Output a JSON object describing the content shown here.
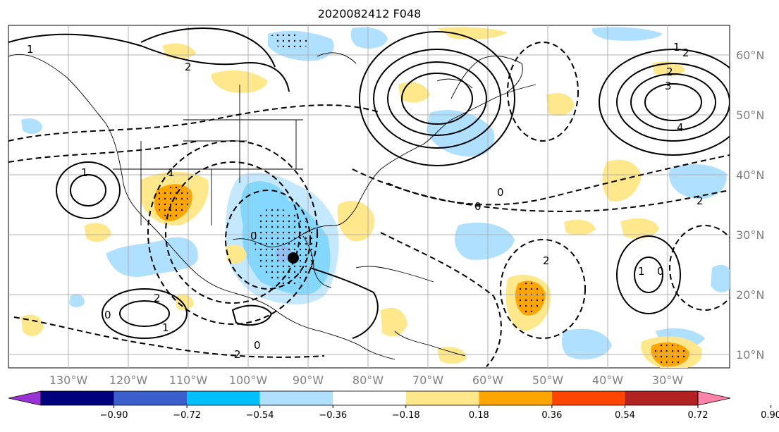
{
  "title": "2020082412 F048",
  "lon_labels": [
    "130°W",
    "120°W",
    "110°W",
    "100°W",
    "90°W",
    "80°W",
    "70°W",
    "60°W",
    "50°W",
    "40°W",
    "30°W"
  ],
  "lat_labels": [
    "60°N",
    "50°N",
    "40°N",
    "30°N",
    "20°N",
    "10°N"
  ],
  "colorbar": {
    "ticks": [
      "−0.90",
      "−0.72",
      "−0.54",
      "−0.36",
      "−0.18",
      "0.18",
      "0.36",
      "0.54",
      "0.72",
      "0.90"
    ],
    "colors": [
      "#9a33d6",
      "#00007f",
      "#3a5fcd",
      "#00bfff",
      "#b0e0ff",
      "#ffffff",
      "#ffe78c",
      "#ffa500",
      "#ff4500",
      "#b22222",
      "#ff82ab"
    ]
  },
  "contour_labels": [
    "1",
    "2",
    "2",
    "3",
    "4",
    "2",
    "1",
    "0",
    "0",
    "0",
    "0",
    "2",
    "1",
    "1",
    "2",
    "0",
    "2",
    "0",
    "1",
    "2",
    "1"
  ],
  "colors": {
    "contour": "#000000",
    "grid": "#b0b0b0",
    "coast": "#000000",
    "storm_marker": "#000000"
  }
}
